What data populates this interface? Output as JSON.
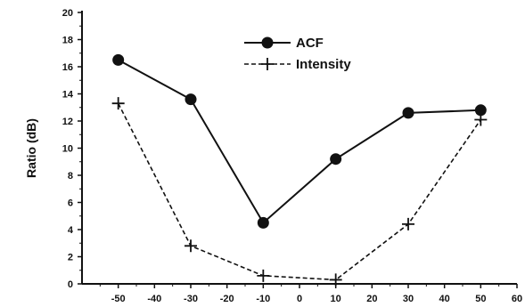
{
  "chart_data": {
    "type": "line",
    "title": "",
    "xlabel": "",
    "ylabel": "Ratio (dB)",
    "xlim": [
      -60,
      60
    ],
    "ylim": [
      0,
      20
    ],
    "x_ticks": [
      -50,
      -40,
      -30,
      -20,
      -10,
      0,
      10,
      20,
      30,
      40,
      50,
      60
    ],
    "y_ticks": [
      0,
      2,
      4,
      6,
      8,
      10,
      12,
      14,
      16,
      18,
      20
    ],
    "grid": false,
    "legend_position": "top-center",
    "series": [
      {
        "name": "ACF",
        "marker": "filled-circle",
        "line_style": "solid",
        "x": [
          -50,
          -30,
          -10,
          10,
          30,
          50
        ],
        "y": [
          16.5,
          13.6,
          4.5,
          9.2,
          12.6,
          12.8
        ]
      },
      {
        "name": "Intensity",
        "marker": "plus",
        "line_style": "dashed",
        "x": [
          -50,
          -30,
          -10,
          10,
          30,
          50
        ],
        "y": [
          13.3,
          2.8,
          0.6,
          0.3,
          4.4,
          12.1
        ]
      }
    ]
  }
}
